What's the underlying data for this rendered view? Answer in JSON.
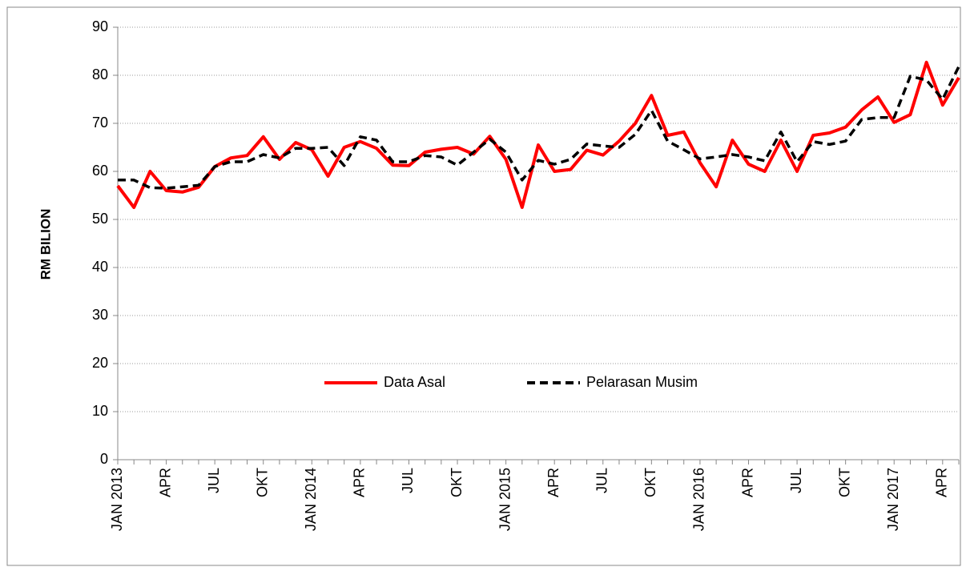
{
  "chart_data": {
    "type": "line",
    "y_label": "RM BILION",
    "categories": [
      "JAN 2013",
      null,
      null,
      "APR",
      null,
      null,
      "JUL",
      null,
      null,
      "OKT",
      null,
      null,
      "JAN 2014",
      null,
      null,
      "APR",
      null,
      null,
      "JUL",
      null,
      null,
      "OKT",
      null,
      null,
      "JAN 2015",
      null,
      null,
      "APR",
      null,
      null,
      "JUL",
      null,
      null,
      "OKT",
      null,
      null,
      "JAN 2016",
      null,
      null,
      "APR",
      null,
      null,
      "JUL",
      null,
      null,
      "OKT",
      null,
      null,
      "JAN 2017",
      null,
      null,
      "APR",
      null
    ],
    "series": [
      {
        "name": "Data Asal",
        "color": "#ff0000",
        "dash": false,
        "values": [
          57,
          52.5,
          60,
          56,
          55.7,
          56.7,
          61,
          62.8,
          63.3,
          67.2,
          62.5,
          66,
          64.5,
          59,
          65,
          66.2,
          64.8,
          61.3,
          61.2,
          64,
          64.6,
          65,
          63.6,
          67.3,
          62.5,
          52.5,
          65.5,
          60,
          60.4,
          64.4,
          63.4,
          66.3,
          70,
          75.8,
          67.5,
          68.2,
          61.8,
          56.8,
          66.5,
          61.5,
          60,
          66.5,
          60,
          67.5,
          68,
          69.2,
          72.8,
          75.5,
          70.2,
          71.8,
          82.7,
          73.8,
          79.5
        ]
      },
      {
        "name": "Pelarasan Musim",
        "color": "#000000",
        "dash": true,
        "values": [
          58.2,
          58.2,
          56.6,
          56.5,
          56.8,
          57.1,
          61,
          62,
          62,
          63.5,
          62.8,
          64.8,
          64.8,
          65,
          61.2,
          67.2,
          66.5,
          62,
          62,
          63.3,
          63,
          61.3,
          64,
          66.7,
          64,
          58.2,
          62.3,
          61.5,
          62.5,
          65.7,
          65.3,
          65,
          67.7,
          72.7,
          66.3,
          64.5,
          62.6,
          63,
          63.5,
          63,
          62.2,
          68.2,
          62,
          66.2,
          65.6,
          66.3,
          70.8,
          71.2,
          71.2,
          79.8,
          79,
          75,
          81.8
        ]
      }
    ],
    "ylim": [
      0,
      90
    ],
    "yticks": [
      0,
      10,
      20,
      30,
      40,
      50,
      60,
      70,
      80,
      90
    ],
    "grid": true,
    "legend": "center"
  }
}
